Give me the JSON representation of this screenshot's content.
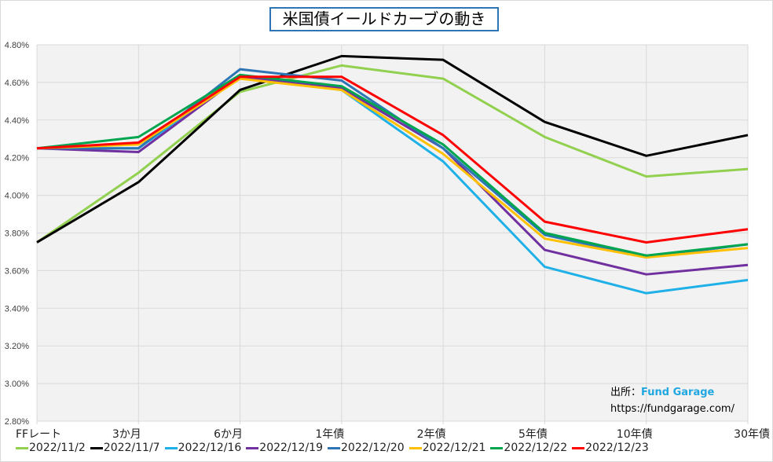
{
  "chart_data": {
    "type": "line",
    "title": "米国債イールドカーブの動き",
    "categories": [
      "FFレート",
      "3か月",
      "6か月",
      "1年債",
      "2年債",
      "5年債",
      "10年債",
      "30年債"
    ],
    "ylim": [
      2.8,
      4.8
    ],
    "yticks": [
      "2.80%",
      "3.00%",
      "3.20%",
      "3.40%",
      "3.60%",
      "3.80%",
      "4.00%",
      "4.20%",
      "4.40%",
      "4.60%",
      "4.80%"
    ],
    "ytick_values": [
      2.8,
      3.0,
      3.2,
      3.4,
      3.6,
      3.8,
      4.0,
      4.2,
      4.4,
      4.6,
      4.8
    ],
    "grid": true,
    "legend_position": "bottom",
    "series": [
      {
        "name": "2022/11/2",
        "color": "#92d050",
        "values": [
          3.75,
          4.12,
          4.55,
          4.69,
          4.62,
          4.31,
          4.1,
          4.14
        ]
      },
      {
        "name": "2022/11/7",
        "color": "#000000",
        "values": [
          3.75,
          4.07,
          4.56,
          4.74,
          4.72,
          4.39,
          4.21,
          4.32
        ]
      },
      {
        "name": "2022/12/16",
        "color": "#1fb0e8",
        "values": [
          4.25,
          4.25,
          4.63,
          4.56,
          4.18,
          3.62,
          3.48,
          3.55
        ]
      },
      {
        "name": "2022/12/19",
        "color": "#7030a0",
        "values": [
          4.25,
          4.23,
          4.63,
          4.57,
          4.25,
          3.71,
          3.58,
          3.63
        ]
      },
      {
        "name": "2022/12/20",
        "color": "#2e75b6",
        "values": [
          4.25,
          4.25,
          4.67,
          4.61,
          4.25,
          3.79,
          3.67,
          3.74
        ]
      },
      {
        "name": "2022/12/21",
        "color": "#ffc000",
        "values": [
          4.25,
          4.27,
          4.62,
          4.56,
          4.22,
          3.77,
          3.67,
          3.72
        ]
      },
      {
        "name": "2022/12/22",
        "color": "#00a550",
        "values": [
          4.25,
          4.31,
          4.64,
          4.58,
          4.27,
          3.8,
          3.68,
          3.74
        ]
      },
      {
        "name": "2022/12/23",
        "color": "#ff0000",
        "values": [
          4.25,
          4.28,
          4.63,
          4.63,
          4.32,
          3.86,
          3.75,
          3.82
        ]
      }
    ]
  },
  "source": {
    "label": "出所：",
    "name": "Fund Garage",
    "url": "https://fundgarage.com/"
  }
}
